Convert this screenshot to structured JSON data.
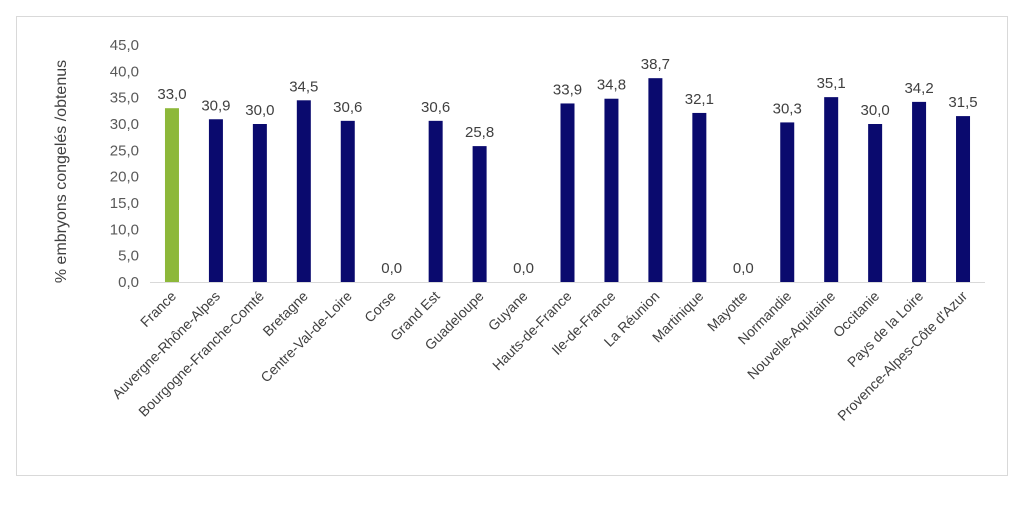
{
  "chart_data": {
    "type": "bar",
    "title": "",
    "xlabel": "",
    "ylabel": "% embryons congelés /obtenus",
    "ylim": [
      0,
      45
    ],
    "yticks": [
      "0,0",
      "5,0",
      "10,0",
      "15,0",
      "20,0",
      "25,0",
      "30,0",
      "35,0",
      "40,0",
      "45,0"
    ],
    "grid": false,
    "legend": "none",
    "categories": [
      "France",
      "Auvergne-Rhône-Alpes",
      "Bourgogne-Franche-Comté",
      "Bretagne",
      "Centre-Val-de-Loire",
      "Corse",
      "Grand Est",
      "Guadeloupe",
      "Guyane",
      "Hauts-de-France",
      "Ile-de-France",
      "La Réunion",
      "Martinique",
      "Mayotte",
      "Normandie",
      "Nouvelle-Aquitaine",
      "Occitanie",
      "Pays de la Loire",
      "Provence-Alpes-Côte d'Azur"
    ],
    "values": [
      33.0,
      30.9,
      30.0,
      34.5,
      30.6,
      0.0,
      30.6,
      25.8,
      0.0,
      33.9,
      34.8,
      38.7,
      32.1,
      0.0,
      30.3,
      35.1,
      30.0,
      34.2,
      31.5
    ],
    "value_labels": [
      "33,0",
      "30,9",
      "30,0",
      "34,5",
      "30,6",
      "0,0",
      "30,6",
      "25,8",
      "0,0",
      "33,9",
      "34,8",
      "38,7",
      "32,1",
      "0,0",
      "30,3",
      "35,1",
      "30,0",
      "34,2",
      "31,5"
    ],
    "colors": {
      "highlight": "#8DB83A",
      "default": "#0A0A6E",
      "axis": "#d9d9d9"
    },
    "highlight_index": 0
  }
}
